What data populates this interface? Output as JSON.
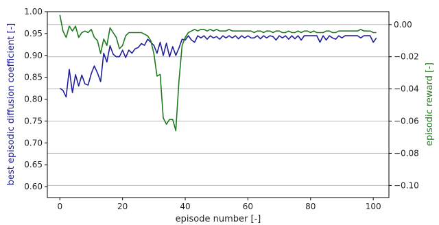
{
  "chart_data": {
    "type": "line",
    "title": "",
    "xlabel": "episode number [-]",
    "ylabel_left": "best episodic diffusion coefficient [-]",
    "ylabel_right": "episodic reward [-]",
    "xlim": [
      -4,
      105
    ],
    "ylim_left": [
      0.575,
      1.0
    ],
    "ylim_right": [
      -0.1075,
      0.008
    ],
    "x_ticks": [
      0,
      20,
      40,
      60,
      80,
      100
    ],
    "x_tick_labels": [
      "0",
      "20",
      "40",
      "60",
      "80",
      "100"
    ],
    "y_left_ticks": [
      0.6,
      0.65,
      0.7,
      0.75,
      0.8,
      0.85,
      0.9,
      0.95,
      1.0
    ],
    "y_left_tick_labels": [
      "0.60",
      "0.65",
      "0.70",
      "0.75",
      "0.80",
      "0.85",
      "0.90",
      "0.95",
      "1.00"
    ],
    "y_right_ticks": [
      0.0,
      -0.02,
      -0.04,
      -0.06,
      -0.08,
      -0.1
    ],
    "y_right_tick_labels": [
      "0.00",
      "−0.02",
      "−0.04",
      "−0.06",
      "−0.08",
      "−0.10"
    ],
    "grid": "horizontal lines at right-axis ticks",
    "legend": "none",
    "series": [
      {
        "axis": "left",
        "color": "#1f1f9a",
        "x": [
          0,
          1,
          2,
          3,
          4,
          5,
          6,
          7,
          8,
          9,
          10,
          11,
          12,
          13,
          14,
          15,
          16,
          17,
          18,
          19,
          20,
          21,
          22,
          23,
          24,
          25,
          26,
          27,
          28,
          29,
          30,
          31,
          32,
          33,
          34,
          35,
          36,
          37,
          38,
          39,
          40,
          41,
          42,
          43,
          44,
          45,
          46,
          47,
          48,
          49,
          50,
          51,
          52,
          53,
          54,
          55,
          56,
          57,
          58,
          59,
          60,
          61,
          62,
          63,
          64,
          65,
          66,
          67,
          68,
          69,
          70,
          71,
          72,
          73,
          74,
          75,
          76,
          77,
          78,
          79,
          80,
          81,
          82,
          83,
          84,
          85,
          86,
          87,
          88,
          89,
          90,
          91,
          92,
          93,
          94,
          95,
          96,
          97,
          98,
          99,
          100,
          101
        ],
        "values": [
          0.825,
          0.82,
          0.805,
          0.868,
          0.815,
          0.856,
          0.83,
          0.855,
          0.835,
          0.832,
          0.858,
          0.876,
          0.86,
          0.84,
          0.905,
          0.885,
          0.922,
          0.903,
          0.897,
          0.897,
          0.912,
          0.895,
          0.912,
          0.905,
          0.915,
          0.918,
          0.927,
          0.923,
          0.937,
          0.93,
          0.923,
          0.905,
          0.93,
          0.9,
          0.928,
          0.897,
          0.92,
          0.9,
          0.917,
          0.937,
          0.935,
          0.945,
          0.935,
          0.93,
          0.945,
          0.94,
          0.945,
          0.937,
          0.945,
          0.94,
          0.943,
          0.937,
          0.945,
          0.94,
          0.945,
          0.94,
          0.945,
          0.938,
          0.945,
          0.94,
          0.945,
          0.94,
          0.94,
          0.945,
          0.938,
          0.945,
          0.94,
          0.945,
          0.943,
          0.935,
          0.945,
          0.94,
          0.945,
          0.937,
          0.945,
          0.938,
          0.945,
          0.935,
          0.945,
          0.945,
          0.945,
          0.945,
          0.945,
          0.93,
          0.945,
          0.935,
          0.945,
          0.94,
          0.937,
          0.945,
          0.94,
          0.945,
          0.945,
          0.945,
          0.945,
          0.945,
          0.94,
          0.945,
          0.945,
          0.945,
          0.93,
          0.94
        ]
      },
      {
        "axis": "right",
        "color": "#1d7a1d",
        "x": [
          0,
          1,
          2,
          3,
          4,
          5,
          6,
          7,
          8,
          9,
          10,
          11,
          12,
          13,
          14,
          15,
          16,
          17,
          18,
          19,
          20,
          21,
          22,
          23,
          24,
          25,
          26,
          27,
          28,
          29,
          30,
          31,
          32,
          33,
          34,
          35,
          36,
          37,
          38,
          39,
          40,
          41,
          42,
          43,
          44,
          45,
          46,
          47,
          48,
          49,
          50,
          51,
          52,
          53,
          54,
          55,
          56,
          57,
          58,
          59,
          60,
          61,
          62,
          63,
          64,
          65,
          66,
          67,
          68,
          69,
          70,
          71,
          72,
          73,
          74,
          75,
          76,
          77,
          78,
          79,
          80,
          81,
          82,
          83,
          84,
          85,
          86,
          87,
          88,
          89,
          90,
          91,
          92,
          93,
          94,
          95,
          96,
          97,
          98,
          99,
          100,
          101
        ],
        "values": [
          0.006,
          -0.004,
          -0.008,
          -0.001,
          -0.004,
          -0.001,
          -0.008,
          -0.005,
          -0.004,
          -0.005,
          -0.003,
          -0.008,
          -0.01,
          -0.018,
          -0.009,
          -0.013,
          -0.002,
          -0.005,
          -0.008,
          -0.015,
          -0.013,
          -0.007,
          -0.005,
          -0.005,
          -0.005,
          -0.005,
          -0.005,
          -0.006,
          -0.007,
          -0.01,
          -0.018,
          -0.032,
          -0.031,
          -0.058,
          -0.062,
          -0.059,
          -0.059,
          -0.066,
          -0.035,
          -0.013,
          -0.008,
          -0.005,
          -0.004,
          -0.003,
          -0.004,
          -0.003,
          -0.003,
          -0.004,
          -0.003,
          -0.004,
          -0.003,
          -0.004,
          -0.004,
          -0.004,
          -0.003,
          -0.004,
          -0.004,
          -0.004,
          -0.004,
          -0.004,
          -0.004,
          -0.004,
          -0.005,
          -0.004,
          -0.004,
          -0.005,
          -0.004,
          -0.004,
          -0.005,
          -0.004,
          -0.004,
          -0.005,
          -0.005,
          -0.004,
          -0.005,
          -0.005,
          -0.004,
          -0.005,
          -0.004,
          -0.004,
          -0.005,
          -0.004,
          -0.005,
          -0.005,
          -0.005,
          -0.004,
          -0.004,
          -0.005,
          -0.005,
          -0.004,
          -0.004,
          -0.004,
          -0.004,
          -0.004,
          -0.004,
          -0.004,
          -0.003,
          -0.004,
          -0.004,
          -0.004,
          -0.005,
          -0.005
        ]
      }
    ]
  }
}
